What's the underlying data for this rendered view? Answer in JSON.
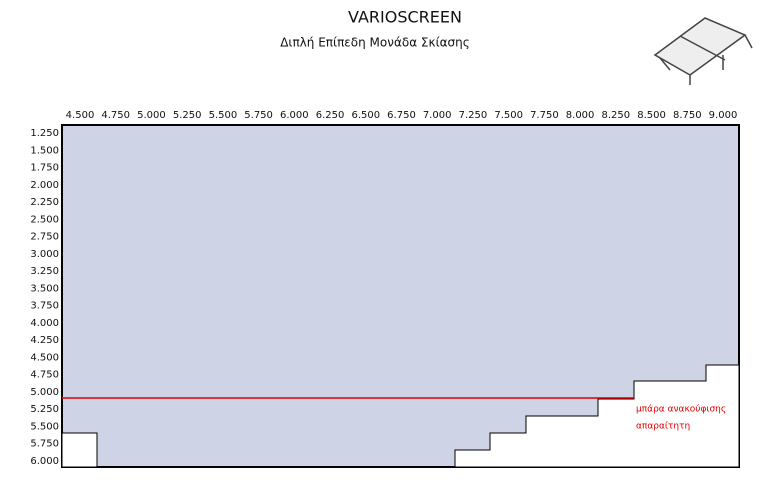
{
  "header": {
    "title": "VARIOSCREEN",
    "subtitle": "Διπλή Επίπεδη Μονάδα Σκίασης"
  },
  "table": {
    "columns": [
      "4.500",
      "4.750",
      "5.000",
      "5.250",
      "5.500",
      "5.750",
      "6.000",
      "6.250",
      "6.500",
      "6.750",
      "7.000",
      "7.250",
      "7.500",
      "7.750",
      "8.000",
      "8.250",
      "8.500",
      "8.750",
      "9.000"
    ],
    "rows": [
      "1.250",
      "1.500",
      "1.750",
      "2.000",
      "2.250",
      "2.500",
      "2.750",
      "3.000",
      "3.250",
      "3.500",
      "3.750",
      "4.000",
      "4.250",
      "4.500",
      "4.750",
      "5.000",
      "5.250",
      "5.500",
      "5.750",
      "6.000"
    ]
  },
  "annotation": {
    "line1": "μπάρα ανακούφισης",
    "line2": "απαραίτητη"
  }
}
